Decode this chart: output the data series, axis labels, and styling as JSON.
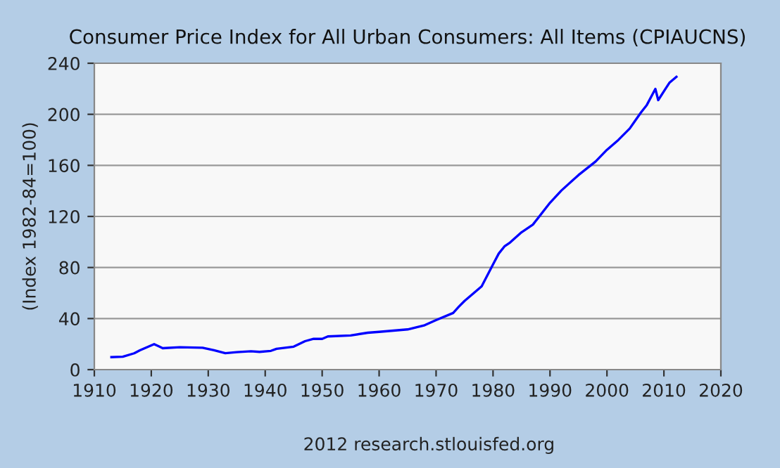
{
  "chart_data": {
    "type": "line",
    "title": "Consumer Price Index for All Urban Consumers: All Items (CPIAUCNS)",
    "ylabel": "(Index 1982-84=100)",
    "x": [
      1913,
      1915,
      1917,
      1918,
      1920.5,
      1921.5,
      1922,
      1925,
      1929,
      1931,
      1933,
      1935,
      1937.5,
      1939,
      1941,
      1942,
      1945,
      1947,
      1948.5,
      1950,
      1951,
      1955,
      1958,
      1960,
      1965,
      1968,
      1970,
      1973,
      1974,
      1975,
      1978,
      1980,
      1981,
      1982,
      1983,
      1985,
      1987,
      1990,
      1992,
      1995,
      1998,
      2000,
      2002,
      2004,
      2005,
      2006,
      2007,
      2008.5,
      2009,
      2010,
      2011,
      2012.2
    ],
    "series": [
      {
        "color": "#0000ff",
        "values": [
          9.8,
          10.1,
          12.8,
          15.1,
          20.0,
          17.9,
          16.8,
          17.5,
          17.1,
          15.2,
          12.9,
          13.7,
          14.4,
          13.9,
          14.7,
          16.3,
          18.0,
          22.3,
          24.1,
          24.1,
          26.0,
          26.8,
          28.9,
          29.6,
          31.5,
          34.8,
          38.8,
          44.4,
          49.3,
          53.8,
          65.2,
          82.4,
          90.9,
          96.5,
          99.6,
          107.6,
          113.6,
          130.7,
          140.3,
          152.4,
          163.0,
          172.2,
          179.9,
          188.9,
          195.3,
          201.6,
          207.3,
          219.9,
          211.1,
          218.1,
          224.9,
          229.4
        ]
      }
    ],
    "xlim": [
      1910,
      2020
    ],
    "xticks": [
      1910,
      1920,
      1930,
      1940,
      1950,
      1960,
      1970,
      1980,
      1990,
      2000,
      2010,
      2020
    ],
    "ylim": [
      0,
      240
    ],
    "yticks": [
      0,
      40,
      80,
      120,
      160,
      200,
      240
    ],
    "grid": "y",
    "annotations": [
      "2012 research.stlouisfed.org"
    ]
  }
}
